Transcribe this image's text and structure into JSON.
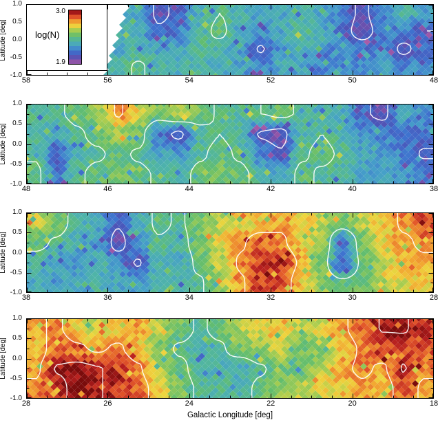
{
  "figure": {
    "xlabel": "Galactic Longitude [deg]",
    "ylabel": "Latitude [deg]",
    "background": "#ffffff"
  },
  "legend": {
    "label": "log(N)",
    "top_tick": "3.0",
    "bottom_tick": "1.9"
  },
  "chart_data": {
    "type": "heatmap",
    "value_label": "log(N)",
    "vmin": 1.9,
    "vmax": 3.0,
    "lat_range": [
      -1.0,
      1.0
    ],
    "lat_ticks": [
      "1.0",
      "0.5",
      "0.0",
      "-0.5",
      "-1.0"
    ],
    "contour_levels": [
      2.08,
      2.42,
      2.78,
      2.95
    ],
    "contour_color": "#ffffff",
    "colormap_stops": [
      {
        "t": 0.0,
        "color": "#a85ca8"
      },
      {
        "t": 0.07,
        "color": "#7d4fa8"
      },
      {
        "t": 0.15,
        "color": "#4b55b8"
      },
      {
        "t": 0.24,
        "color": "#3f72cf"
      },
      {
        "t": 0.33,
        "color": "#46a0c8"
      },
      {
        "t": 0.42,
        "color": "#4fb4a8"
      },
      {
        "t": 0.52,
        "color": "#62bd6e"
      },
      {
        "t": 0.62,
        "color": "#a3cc52"
      },
      {
        "t": 0.7,
        "color": "#eed53e"
      },
      {
        "t": 0.78,
        "color": "#f2a431"
      },
      {
        "t": 0.87,
        "color": "#e2562a"
      },
      {
        "t": 0.94,
        "color": "#b61f1f"
      },
      {
        "t": 1.0,
        "color": "#7a0c0c"
      }
    ],
    "panels": [
      {
        "lon_start": 58,
        "lon_end": 48,
        "lon_tick_labels": [
          "58",
          "56",
          "54",
          "52",
          "50",
          "48"
        ],
        "mask": "upper-left-diagonal",
        "values": [
          [
            2.3,
            2.32,
            2.3,
            2.34,
            2.36,
            2.28,
            2.04,
            2.12,
            2.32,
            2.42,
            2.34,
            2.3,
            2.28,
            2.36,
            2.3,
            2.18,
            2.04,
            2.22,
            2.36,
            2.26
          ],
          [
            2.3,
            2.3,
            2.32,
            2.3,
            2.34,
            2.3,
            2.1,
            2.16,
            2.36,
            2.46,
            2.3,
            2.24,
            2.3,
            2.42,
            2.3,
            2.14,
            2.0,
            2.16,
            2.2,
            2.08
          ],
          [
            2.3,
            2.3,
            2.3,
            2.32,
            2.3,
            2.36,
            2.3,
            2.3,
            2.42,
            2.36,
            2.28,
            2.06,
            2.26,
            2.36,
            2.24,
            2.2,
            2.16,
            2.22,
            2.04,
            2.16
          ],
          [
            2.3,
            2.3,
            2.3,
            2.3,
            2.36,
            2.44,
            2.36,
            2.3,
            2.36,
            2.3,
            2.28,
            2.2,
            2.3,
            2.3,
            2.2,
            2.26,
            2.22,
            2.26,
            2.2,
            2.22
          ]
        ]
      },
      {
        "lon_start": 48,
        "lon_end": 38,
        "lon_tick_labels": [
          "48",
          "46",
          "44",
          "42",
          "40",
          "38"
        ],
        "mask": "none",
        "values": [
          [
            2.4,
            2.4,
            2.46,
            2.56,
            2.8,
            2.66,
            2.5,
            2.62,
            2.5,
            2.4,
            2.4,
            2.42,
            2.46,
            2.4,
            2.36,
            2.3,
            2.1,
            2.04,
            2.3,
            2.22
          ],
          [
            2.36,
            2.3,
            2.4,
            2.46,
            2.56,
            2.5,
            2.16,
            2.04,
            2.36,
            2.42,
            2.36,
            2.06,
            2.0,
            2.36,
            2.42,
            2.36,
            2.26,
            2.2,
            2.1,
            2.16
          ],
          [
            2.4,
            2.1,
            2.36,
            2.4,
            2.46,
            2.4,
            2.3,
            2.26,
            2.4,
            2.46,
            2.4,
            2.2,
            2.1,
            2.4,
            2.46,
            2.4,
            2.3,
            2.26,
            2.2,
            2.06
          ],
          [
            2.46,
            2.16,
            2.4,
            2.46,
            2.5,
            2.46,
            2.4,
            2.36,
            2.46,
            2.5,
            2.46,
            2.36,
            2.3,
            2.46,
            2.4,
            2.36,
            2.3,
            2.3,
            2.26,
            2.2
          ]
        ]
      },
      {
        "lon_start": 38,
        "lon_end": 28,
        "lon_tick_labels": [
          "38",
          "36",
          "34",
          "32",
          "30",
          "28"
        ],
        "mask": "none",
        "values": [
          [
            2.62,
            2.5,
            2.36,
            2.3,
            2.1,
            2.3,
            2.46,
            2.4,
            2.5,
            2.6,
            2.66,
            2.7,
            2.76,
            2.7,
            2.6,
            2.5,
            2.6,
            2.7,
            2.8,
            2.86
          ],
          [
            2.46,
            2.4,
            2.3,
            2.3,
            2.0,
            2.26,
            2.4,
            2.36,
            2.5,
            2.66,
            2.76,
            2.86,
            2.8,
            2.7,
            2.56,
            2.16,
            2.5,
            2.66,
            2.76,
            2.8
          ],
          [
            2.36,
            2.3,
            2.26,
            2.3,
            2.2,
            2.06,
            2.36,
            2.3,
            2.46,
            2.6,
            2.8,
            2.9,
            2.9,
            2.76,
            2.5,
            2.1,
            2.46,
            2.6,
            2.7,
            2.76
          ],
          [
            2.3,
            2.3,
            2.3,
            2.36,
            2.3,
            2.26,
            2.4,
            2.36,
            2.4,
            2.56,
            2.76,
            2.9,
            2.86,
            2.7,
            2.56,
            2.46,
            2.5,
            2.6,
            2.66,
            2.7
          ]
        ]
      },
      {
        "lon_start": 28,
        "lon_end": 18,
        "lon_tick_labels": [
          "28",
          "26",
          "24",
          "22",
          "20",
          "18"
        ],
        "mask": "none",
        "values": [
          [
            2.76,
            2.8,
            2.7,
            2.6,
            2.7,
            2.76,
            2.6,
            2.5,
            2.4,
            2.46,
            2.6,
            2.66,
            2.7,
            2.6,
            2.66,
            2.76,
            2.86,
            2.96,
            2.96,
            2.9
          ],
          [
            2.7,
            2.86,
            2.8,
            2.76,
            2.8,
            2.7,
            2.5,
            2.4,
            2.36,
            2.4,
            2.5,
            2.56,
            2.6,
            2.5,
            2.56,
            2.7,
            2.8,
            2.86,
            2.9,
            2.86
          ],
          [
            2.76,
            2.96,
            3.0,
            2.96,
            2.9,
            2.8,
            2.6,
            2.46,
            2.36,
            2.36,
            2.3,
            2.4,
            2.5,
            2.46,
            2.6,
            2.76,
            2.8,
            2.76,
            2.96,
            2.8
          ],
          [
            2.8,
            2.9,
            3.0,
            2.96,
            2.9,
            2.86,
            2.7,
            2.5,
            2.4,
            2.4,
            2.36,
            2.46,
            2.56,
            2.6,
            2.66,
            2.7,
            2.76,
            2.7,
            2.86,
            2.76
          ]
        ]
      }
    ]
  }
}
